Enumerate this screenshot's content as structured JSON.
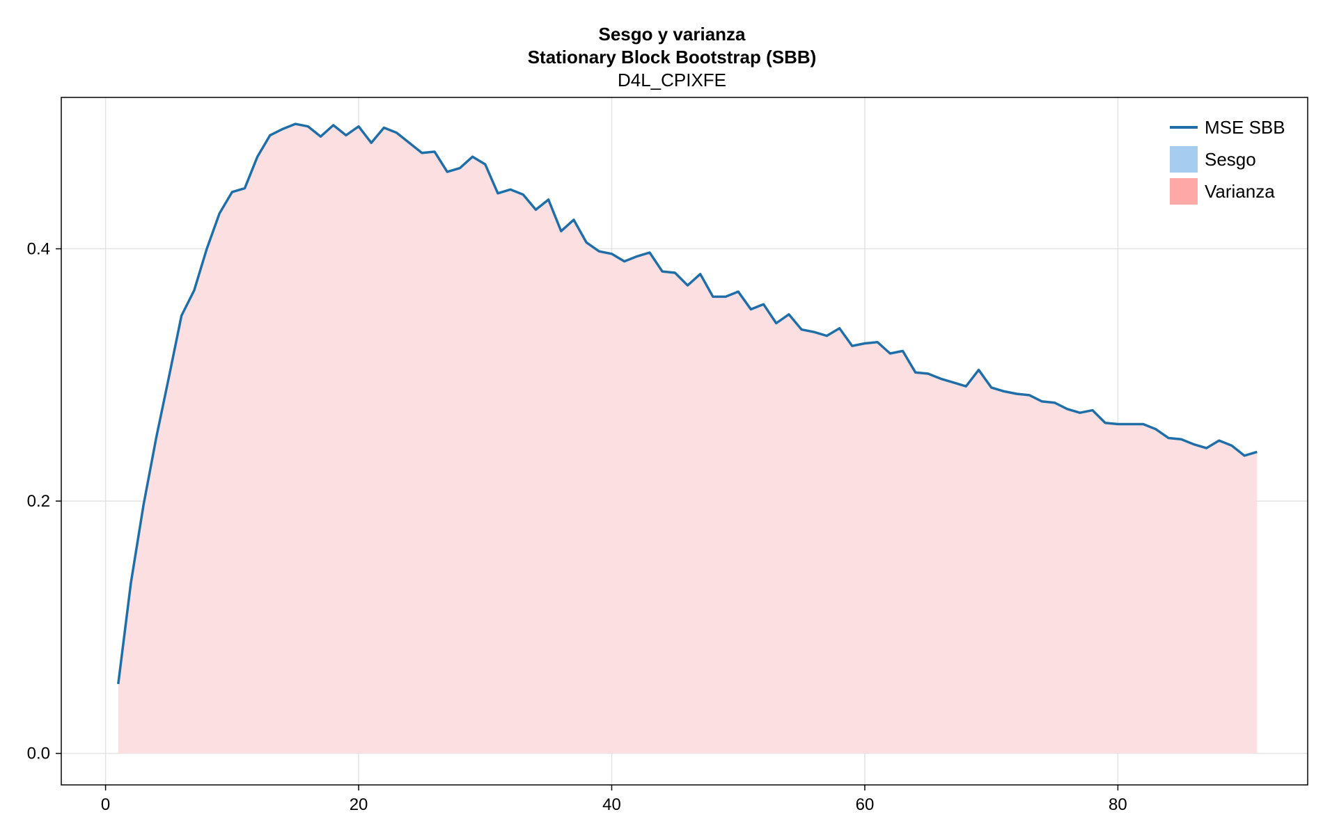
{
  "chart_data": {
    "type": "area",
    "title": "Sesgo y varianza",
    "subtitle": "Stationary Block Bootstrap (SBB)",
    "subtitle2": "D4L_CPIXFE",
    "xlabel": "",
    "ylabel": "",
    "xlim": [
      -3.5,
      95
    ],
    "ylim": [
      -0.025,
      0.52
    ],
    "xticks": [
      0,
      20,
      40,
      60,
      80
    ],
    "xtick_labels": [
      "0",
      "20",
      "40",
      "60",
      "80"
    ],
    "yticks": [
      0.0,
      0.2,
      0.4
    ],
    "ytick_labels": [
      "0.0",
      "0.2",
      "0.4"
    ],
    "grid": true,
    "legend_position": "top-right",
    "colors": {
      "mse_line": "#1f6ea8",
      "sesgo": "#a6cdf0",
      "varianza": "#ffa8a8",
      "varianza_fill": "#fcdfe1",
      "grid": "#e2e2e2"
    },
    "x": [
      1,
      2,
      3,
      4,
      5,
      6,
      7,
      8,
      9,
      10,
      11,
      12,
      13,
      14,
      15,
      16,
      17,
      18,
      19,
      20,
      21,
      22,
      23,
      24,
      25,
      26,
      27,
      28,
      29,
      30,
      31,
      32,
      33,
      34,
      35,
      36,
      37,
      38,
      39,
      40,
      41,
      42,
      43,
      44,
      45,
      46,
      47,
      48,
      49,
      50,
      51,
      52,
      53,
      54,
      55,
      56,
      57,
      58,
      59,
      60,
      61,
      62,
      63,
      64,
      65,
      66,
      67,
      68,
      69,
      70,
      71,
      72,
      73,
      74,
      75,
      76,
      77,
      78,
      79,
      80,
      81,
      82,
      83,
      84,
      85,
      86,
      87,
      88,
      89,
      90,
      91
    ],
    "series": [
      {
        "name": "MSE SBB",
        "kind": "line",
        "values": [
          0.055,
          0.135,
          0.197,
          0.25,
          0.298,
          0.347,
          0.367,
          0.4,
          0.428,
          0.445,
          0.448,
          0.473,
          0.49,
          0.495,
          0.499,
          0.497,
          0.489,
          0.498,
          0.49,
          0.497,
          0.484,
          0.496,
          0.492,
          0.484,
          0.476,
          0.477,
          0.461,
          0.464,
          0.473,
          0.467,
          0.444,
          0.447,
          0.443,
          0.431,
          0.439,
          0.414,
          0.423,
          0.405,
          0.398,
          0.396,
          0.39,
          0.394,
          0.397,
          0.382,
          0.381,
          0.371,
          0.38,
          0.362,
          0.362,
          0.366,
          0.352,
          0.356,
          0.341,
          0.348,
          0.336,
          0.334,
          0.331,
          0.337,
          0.323,
          0.325,
          0.326,
          0.317,
          0.319,
          0.302,
          0.301,
          0.297,
          0.294,
          0.291,
          0.304,
          0.29,
          0.287,
          0.285,
          0.284,
          0.279,
          0.278,
          0.273,
          0.27,
          0.272,
          0.262,
          0.261,
          0.261,
          0.261,
          0.257,
          0.25,
          0.249,
          0.245,
          0.242,
          0.248,
          0.244,
          0.236,
          0.239
        ]
      },
      {
        "name": "Sesgo",
        "kind": "area",
        "values": [
          0,
          0,
          0,
          0,
          0,
          0,
          0,
          0,
          0,
          0,
          0,
          0,
          0,
          0,
          0,
          0,
          0,
          0,
          0,
          0,
          0,
          0,
          0,
          0,
          0,
          0,
          0,
          0,
          0,
          0,
          0,
          0,
          0,
          0,
          0,
          0,
          0,
          0,
          0,
          0,
          0,
          0,
          0,
          0,
          0,
          0,
          0,
          0,
          0,
          0,
          0,
          0,
          0,
          0,
          0,
          0,
          0,
          0,
          0,
          0,
          0,
          0,
          0,
          0,
          0,
          0,
          0,
          0,
          0,
          0,
          0,
          0,
          0,
          0,
          0,
          0,
          0,
          0,
          0,
          0,
          0,
          0,
          0,
          0,
          0,
          0,
          0,
          0,
          0,
          0,
          0
        ]
      },
      {
        "name": "Varianza",
        "kind": "area",
        "values": [
          0.055,
          0.135,
          0.197,
          0.25,
          0.298,
          0.347,
          0.367,
          0.4,
          0.428,
          0.445,
          0.448,
          0.473,
          0.49,
          0.495,
          0.499,
          0.497,
          0.489,
          0.498,
          0.49,
          0.497,
          0.484,
          0.496,
          0.492,
          0.484,
          0.476,
          0.477,
          0.461,
          0.464,
          0.473,
          0.467,
          0.444,
          0.447,
          0.443,
          0.431,
          0.439,
          0.414,
          0.423,
          0.405,
          0.398,
          0.396,
          0.39,
          0.394,
          0.397,
          0.382,
          0.381,
          0.371,
          0.38,
          0.362,
          0.362,
          0.366,
          0.352,
          0.356,
          0.341,
          0.348,
          0.336,
          0.334,
          0.331,
          0.337,
          0.323,
          0.325,
          0.326,
          0.317,
          0.319,
          0.302,
          0.301,
          0.297,
          0.294,
          0.291,
          0.304,
          0.29,
          0.287,
          0.285,
          0.284,
          0.279,
          0.278,
          0.273,
          0.27,
          0.272,
          0.262,
          0.261,
          0.261,
          0.261,
          0.257,
          0.25,
          0.249,
          0.245,
          0.242,
          0.248,
          0.244,
          0.236,
          0.239
        ]
      }
    ]
  }
}
